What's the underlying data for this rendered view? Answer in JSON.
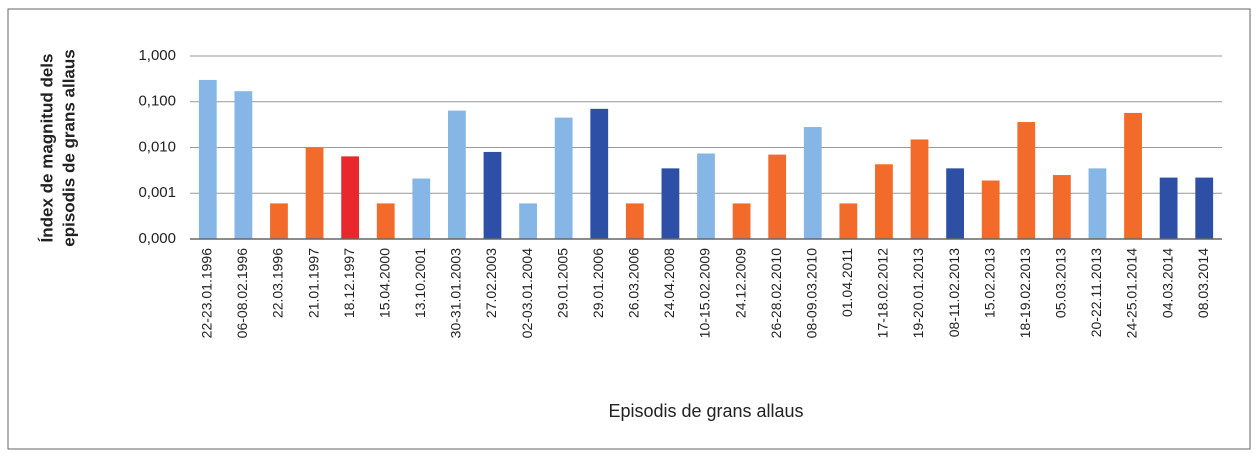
{
  "chart_data": {
    "type": "bar",
    "log_y": true,
    "grid": true,
    "ylabel": [
      "Índex de magnitud dels",
      "episodis de grans allaus"
    ],
    "xlabel": "Episodis de grans allaus",
    "ylim": [
      0.0001,
      1
    ],
    "yticks": [
      {
        "value": 0.0001,
        "label": "0,000"
      },
      {
        "value": 0.001,
        "label": "0,001"
      },
      {
        "value": 0.01,
        "label": "0,010"
      },
      {
        "value": 0.1,
        "label": "0,100"
      },
      {
        "value": 1,
        "label": "1,000"
      }
    ],
    "categories": [
      "22-23.01.1996",
      "06-08.02.1996",
      "22.03.1996",
      "21.01.1997",
      "18.12.1997",
      "15.04.2000",
      "13.10.2001",
      "30-31.01.2003",
      "27.02.2003",
      "02-03.01.2004",
      "29.01.2005",
      "29.01.2006",
      "26.03.2006",
      "24.04.2008",
      "10-15.02.2009",
      "24.12.2009",
      "26-28.02.2010",
      "08-09.03.2010",
      "01.04.2011",
      "17-18.02.2012",
      "19-20.01.2013",
      "08-11.02.2013",
      "15.02.2013",
      "18-19.02.2013",
      "05.03.2013",
      "20-22.11.2013",
      "24-25.01.2014",
      "04.03.2014",
      "08.03.2014"
    ],
    "values": [
      0.3,
      0.17,
      0.0006,
      0.01,
      0.0064,
      0.0006,
      0.0021,
      0.064,
      0.008,
      0.0006,
      0.045,
      0.07,
      0.0006,
      0.0035,
      0.0074,
      0.0006,
      0.007,
      0.028,
      0.0006,
      0.0043,
      0.015,
      0.0035,
      0.0019,
      0.036,
      0.0025,
      0.0035,
      0.057,
      0.0022,
      0.0022
    ],
    "colors": [
      "#86b6e6",
      "#86b6e6",
      "#f26b2a",
      "#f26b2a",
      "#e8282c",
      "#f26b2a",
      "#86b6e6",
      "#86b6e6",
      "#2d4fa6",
      "#86b6e6",
      "#86b6e6",
      "#2d4fa6",
      "#f26b2a",
      "#2d4fa6",
      "#86b6e6",
      "#f26b2a",
      "#f26b2a",
      "#86b6e6",
      "#f26b2a",
      "#f26b2a",
      "#f26b2a",
      "#2d4fa6",
      "#f26b2a",
      "#f26b2a",
      "#f26b2a",
      "#86b6e6",
      "#f26b2a",
      "#2d4fa6",
      "#2d4fa6"
    ]
  }
}
